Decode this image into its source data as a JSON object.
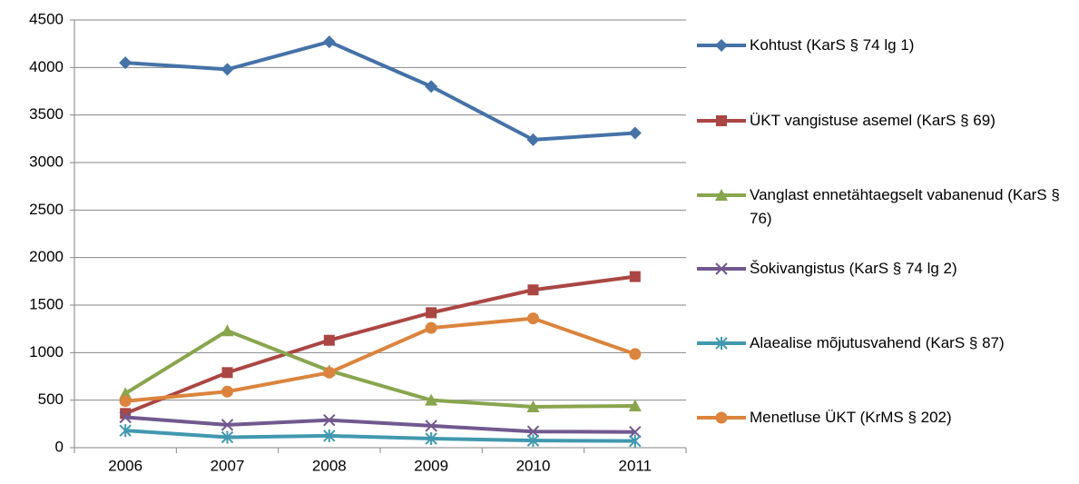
{
  "chart_data": {
    "type": "line",
    "categories": [
      "2006",
      "2007",
      "2008",
      "2009",
      "2010",
      "2011"
    ],
    "series": [
      {
        "name": "Kohtust (KarS § 74 lg 1)",
        "color": "#4572a7",
        "marker": "diamond",
        "values": [
          4050,
          3980,
          4270,
          3800,
          3240,
          3310
        ]
      },
      {
        "name": "ÜKT vangistuse asemel (KarS § 69)",
        "color": "#aa4643",
        "marker": "square",
        "values": [
          360,
          790,
          1130,
          1420,
          1660,
          1800
        ]
      },
      {
        "name": "Vanglast ennetähtaegselt vabanenud (KarS § 76)",
        "color": "#89a54e",
        "marker": "triangle",
        "values": [
          570,
          1230,
          810,
          500,
          430,
          440
        ]
      },
      {
        "name": "Šokivangistus (KarS § 74 lg 2)",
        "color": "#71588f",
        "marker": "x",
        "values": [
          320,
          240,
          290,
          230,
          170,
          165
        ]
      },
      {
        "name": "Alaealise mõjutusvahend (KarS § 87)",
        "color": "#4198af",
        "marker": "star",
        "values": [
          180,
          110,
          125,
          95,
          75,
          70
        ]
      },
      {
        "name": "Menetluse ÜKT (KrMS § 202)",
        "color": "#db843d",
        "marker": "circle",
        "values": [
          490,
          590,
          790,
          1260,
          1360,
          985
        ]
      }
    ],
    "ylim": [
      0,
      4500
    ],
    "yticks": [
      0,
      500,
      1000,
      1500,
      2000,
      2500,
      3000,
      3500,
      4000,
      4500
    ],
    "grid": true,
    "legend": "right"
  }
}
